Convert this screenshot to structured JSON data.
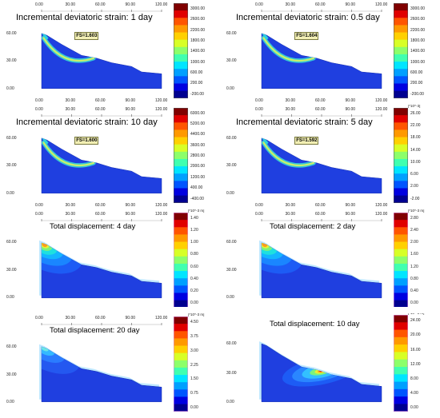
{
  "panels": [
    {
      "title": "Incremental deviatoric strain: 1 day",
      "fs": "FS=1.603",
      "x_ticks": [
        "0.00",
        "30.00",
        "60.00",
        "90.00",
        "120.00"
      ],
      "x_ticks_position": "top",
      "y_ticks": [
        "60.00",
        "30.00",
        "0.00"
      ],
      "colorbar_unit": "",
      "colorbar_labels": [
        "3000.00",
        "2600.00",
        "2200.00",
        "1800.00",
        "1400.00",
        "1000.00",
        "600.00",
        "200.00",
        "-200.00"
      ],
      "field": "strain"
    },
    {
      "title": "Incremental deviatoric strain: 0.5 day",
      "fs": "FS=1.604",
      "x_ticks": [
        "0.00",
        "30.00",
        "60.00",
        "90.00",
        "120.00"
      ],
      "x_ticks_position": "top",
      "y_ticks": [
        "60.00",
        "30.00",
        "0.00"
      ],
      "colorbar_unit": "",
      "colorbar_labels": [
        "3000.00",
        "2600.00",
        "2200.00",
        "1800.00",
        "1400.00",
        "1000.00",
        "600.00",
        "200.00",
        "-200.00"
      ],
      "field": "strain"
    },
    {
      "title": "Incremental deviatoric strain: 10 day",
      "fs": "FS=1.600",
      "x_ticks": [
        "0.00",
        "30.00",
        "60.00",
        "90.00",
        "120.00"
      ],
      "x_ticks_position": "top",
      "y_ticks": [
        "60.00",
        "30.00",
        "0.00"
      ],
      "colorbar_unit": "",
      "colorbar_labels": [
        "6000.00",
        "5200.00",
        "4400.00",
        "3600.00",
        "2800.00",
        "2000.00",
        "1200.00",
        "400.00",
        "-400.00"
      ],
      "field": "strain"
    },
    {
      "title": "Incremental deviatoric strain: 5 day",
      "fs": "FS=1.592",
      "x_ticks": [
        "0.00",
        "30.00",
        "60.00",
        "90.00",
        "120.00"
      ],
      "x_ticks_position": "top",
      "y_ticks": [
        "60.00",
        "30.00",
        "0.00"
      ],
      "colorbar_unit": "[*10^-3]",
      "colorbar_labels": [
        "26.00",
        "22.00",
        "18.00",
        "14.00",
        "10.00",
        "6.00",
        "2.00",
        "-2.00"
      ],
      "field": "strain"
    },
    {
      "title": "Total displacement: 4 day",
      "fs": "",
      "x_ticks": [
        "0.00",
        "30.00",
        "60.00",
        "90.00",
        "120.00"
      ],
      "x_ticks_position": "top",
      "y_ticks": [
        "60.00",
        "30.00",
        "0.00"
      ],
      "colorbar_unit": "[*10^-3 m]",
      "colorbar_labels": [
        "1.40",
        "1.20",
        "1.00",
        "0.80",
        "0.60",
        "0.40",
        "0.20",
        "0.00"
      ],
      "field": "disp_toe"
    },
    {
      "title": "Total displacement: 2 day",
      "fs": "",
      "x_ticks": [
        "0.00",
        "30.00",
        "60.00",
        "90.00",
        "120.00"
      ],
      "x_ticks_position": "top",
      "y_ticks": [
        "60.00",
        "30.00",
        "0.00"
      ],
      "colorbar_unit": "[*10^-3 m]",
      "colorbar_labels": [
        "2.80",
        "2.40",
        "2.00",
        "1.60",
        "1.20",
        "0.80",
        "0.40",
        "0.00"
      ],
      "field": "disp_toe"
    },
    {
      "title": "Total displacement: 20 day",
      "fs": "",
      "x_ticks": [
        "0.00",
        "30.00",
        "60.00",
        "90.00",
        "120.00"
      ],
      "x_ticks_position": "top",
      "y_ticks": [
        "60.00",
        "30.00",
        "0.00"
      ],
      "colorbar_unit": "[*10^-3 m]",
      "colorbar_labels": [
        "4.50",
        "3.75",
        "3.00",
        "2.25",
        "1.50",
        "0.75",
        "0.00"
      ],
      "field": "disp_weak"
    },
    {
      "title": "Total displacement: 10 day",
      "fs": "",
      "x_ticks": [],
      "x_ticks_position": "none",
      "y_ticks": [
        "60.00",
        "30.00",
        "0.00"
      ],
      "colorbar_unit": "[*10^-3 m]",
      "colorbar_labels": [
        "24.00",
        "20.00",
        "16.00",
        "12.00",
        "8.00",
        "4.00",
        "0.00"
      ],
      "field": "disp_mid"
    }
  ],
  "colors": {
    "soil": "#1f3fe0",
    "band_outer": "#37c7d6",
    "band_inner": "#c9f06a",
    "title_bg": "#ffffff"
  }
}
